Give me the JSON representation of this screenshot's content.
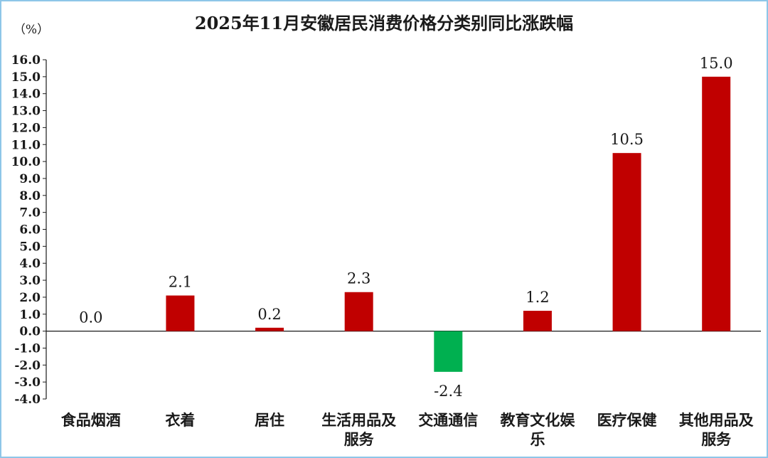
{
  "chart_data": {
    "type": "bar",
    "title": "2025年11月安徽居民消费价格分类别同比涨跌幅",
    "unit_label": "（%）",
    "categories": [
      [
        "食品烟酒"
      ],
      [
        "衣着"
      ],
      [
        "居住"
      ],
      [
        "生活用品及",
        "服务"
      ],
      [
        "交通通信"
      ],
      [
        "教育文化娱",
        "乐"
      ],
      [
        "医疗保健"
      ],
      [
        "其他用品及",
        "服务"
      ]
    ],
    "values": [
      0.0,
      2.1,
      0.2,
      2.3,
      -2.4,
      1.2,
      10.5,
      15.0
    ],
    "value_labels": [
      "0.0",
      "2.1",
      "0.2",
      "2.3",
      "-2.4",
      "1.2",
      "10.5",
      "15.0"
    ],
    "ylim": [
      -4.0,
      16.0
    ],
    "ytick_step": 1.0,
    "ytick_labels": [
      "16.0",
      "15.0",
      "14.0",
      "13.0",
      "12.0",
      "11.0",
      "10.0",
      "9.0",
      "8.0",
      "7.0",
      "6.0",
      "5.0",
      "4.0",
      "3.0",
      "2.0",
      "1.0",
      "0.0",
      "-1.0",
      "-2.0",
      "-3.0",
      "-4.0"
    ],
    "grid": false,
    "legend": "none",
    "colors": {
      "positive": "#c00000",
      "negative": "#00b050",
      "axis": "#1a1a1a",
      "frame": "#8ec6e8"
    }
  }
}
